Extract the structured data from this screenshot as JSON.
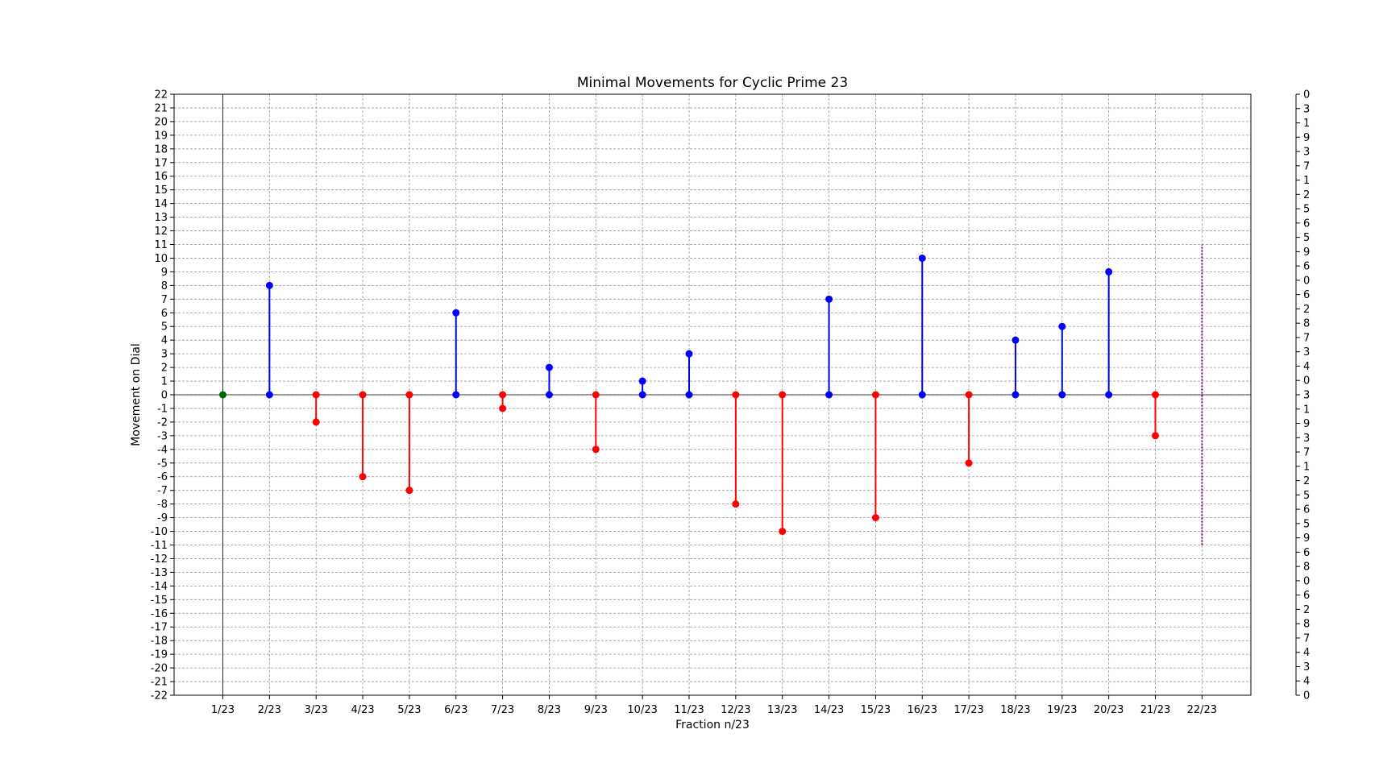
{
  "chart_data": {
    "type": "stem",
    "title": "Minimal Movements for Cyclic Prime 23",
    "xlabel": "Fraction n/23",
    "ylabel": "Movement on Dial",
    "ylim": [
      -22,
      22
    ],
    "grid": true,
    "categories": [
      "1/23",
      "2/23",
      "3/23",
      "4/23",
      "5/23",
      "6/23",
      "7/23",
      "8/23",
      "9/23",
      "10/23",
      "11/23",
      "12/23",
      "13/23",
      "14/23",
      "15/23",
      "16/23",
      "17/23",
      "18/23",
      "19/23",
      "20/23",
      "21/23",
      "22/23"
    ],
    "values": [
      0,
      8,
      -2,
      -6,
      -7,
      6,
      -1,
      2,
      -4,
      1,
      3,
      -8,
      -10,
      7,
      -9,
      10,
      -5,
      4,
      5,
      9,
      -3,
      null
    ],
    "dotted_range": {
      "category": "22/23",
      "from": -11,
      "to": 11
    },
    "colors": {
      "positive": "#0000ff",
      "negative": "#ff0000",
      "zero": "#006400",
      "dotted": "#800080",
      "grid": "#999999",
      "axis": "#000000"
    },
    "right_axis_labels": [
      "0",
      "3",
      "1",
      "9",
      "3",
      "7",
      "1",
      "2",
      "5",
      "6",
      "5",
      "9",
      "6",
      "0",
      "6",
      "2",
      "8",
      "7",
      "3",
      "4",
      "0",
      "3",
      "1",
      "9",
      "3",
      "7",
      "1",
      "2",
      "5",
      "6",
      "5",
      "9",
      "6",
      "8",
      "0",
      "6",
      "2",
      "8",
      "7",
      "4",
      "3",
      "4",
      "0"
    ]
  }
}
